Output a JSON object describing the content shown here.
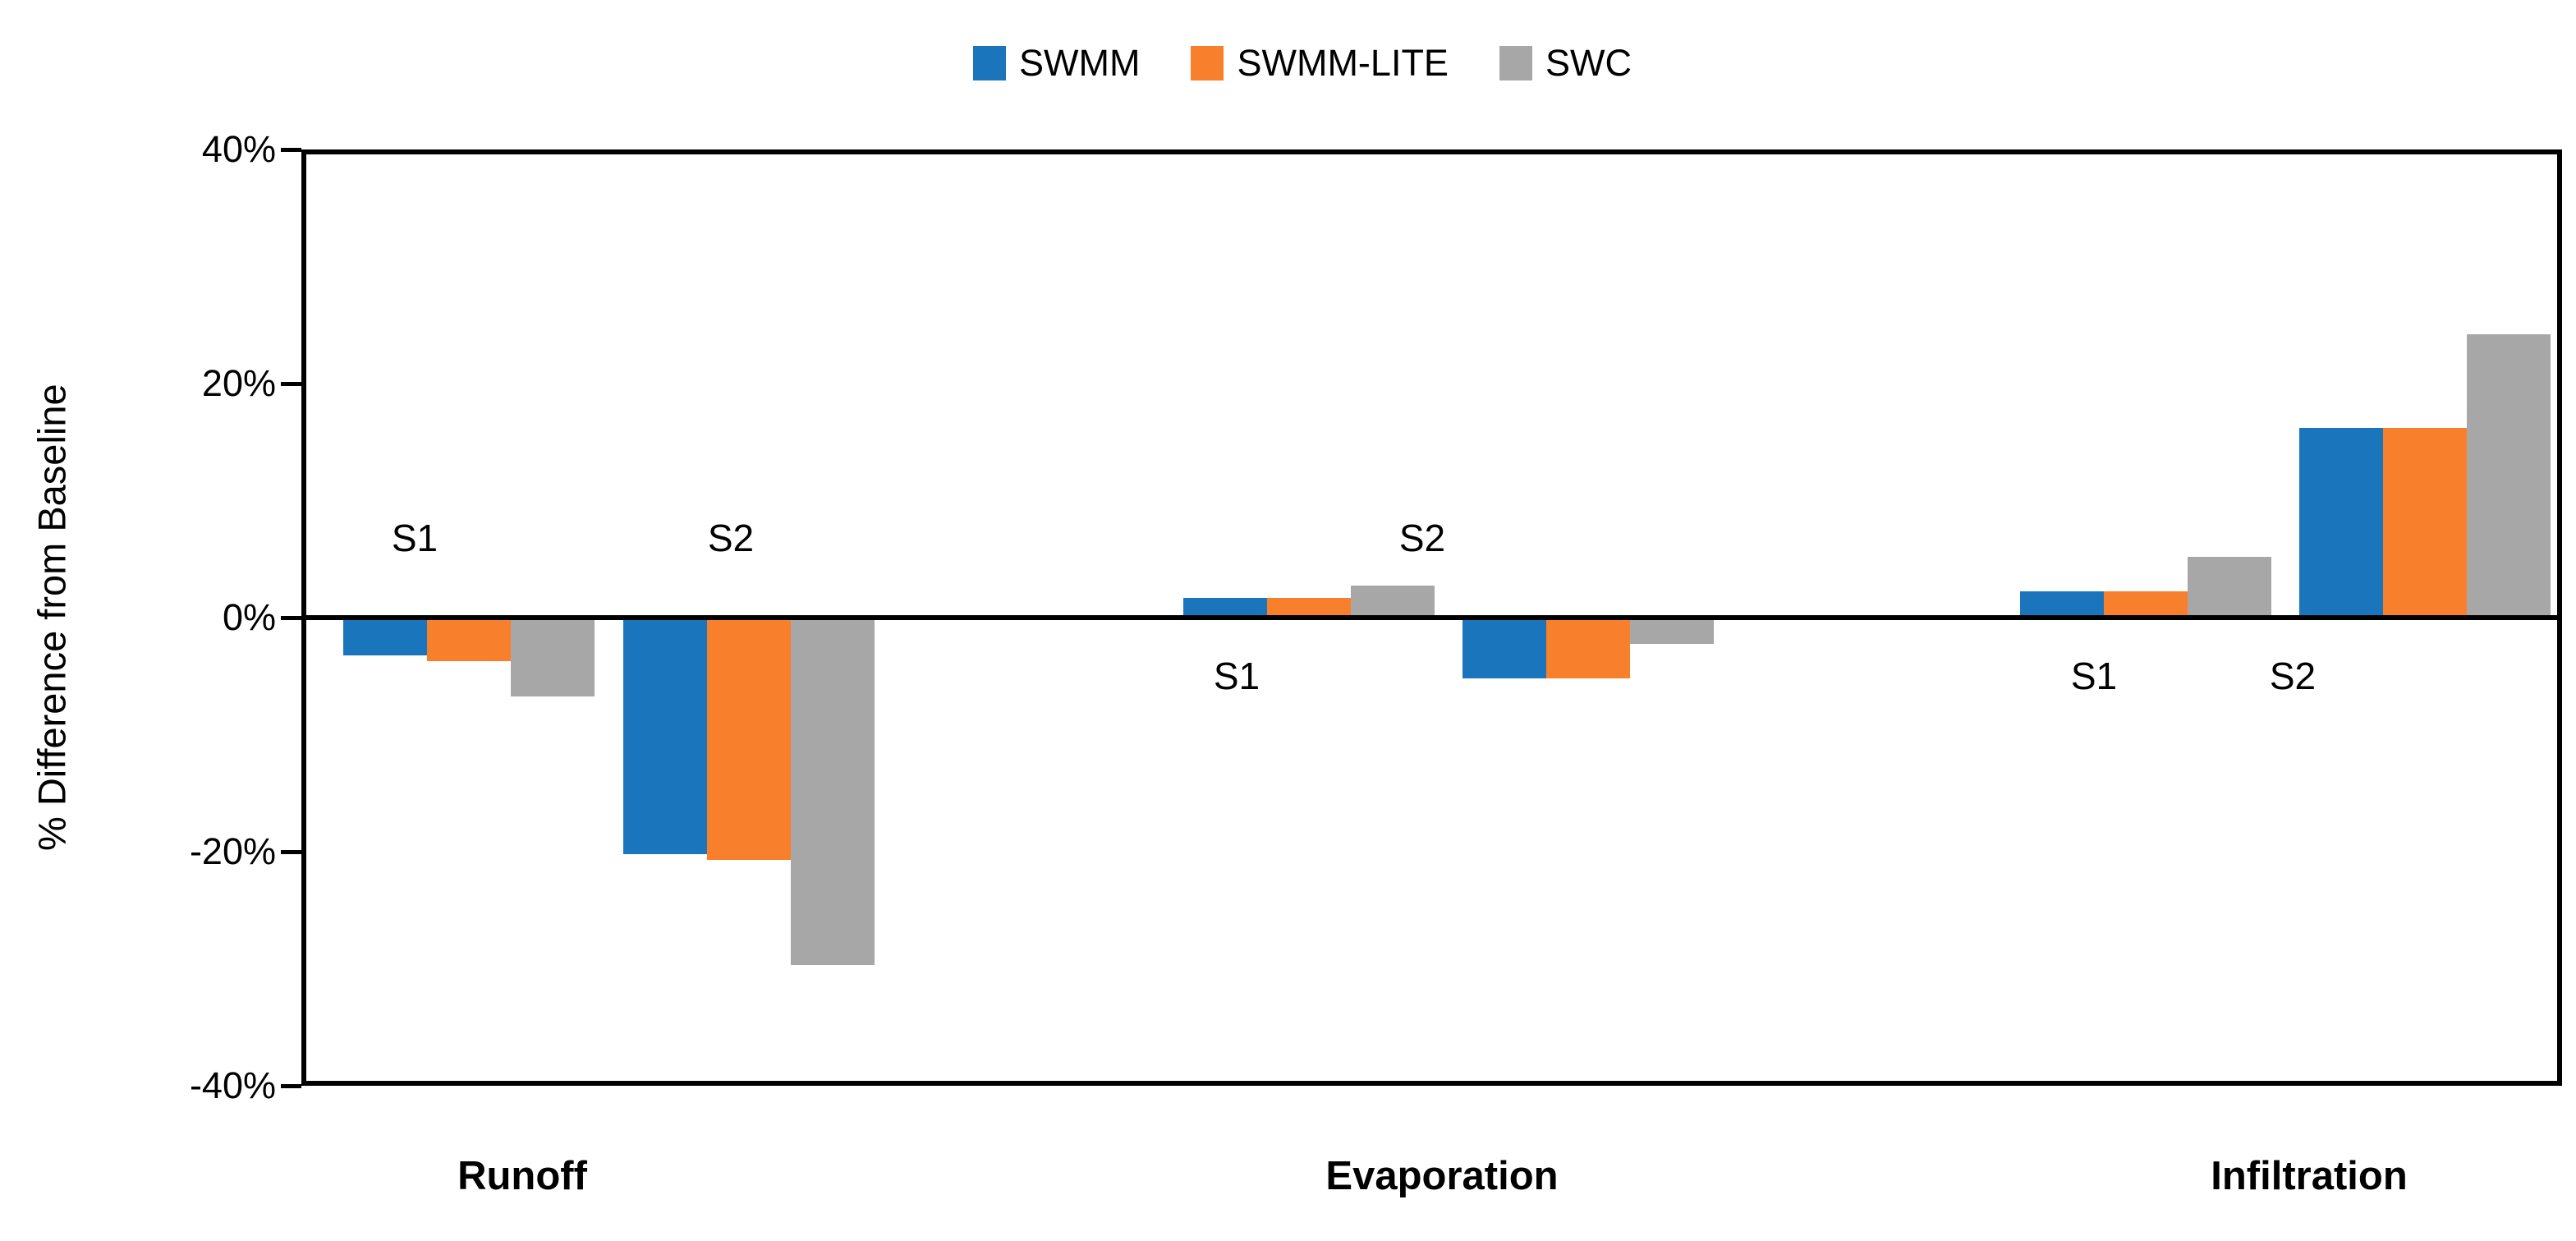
{
  "chart_data": {
    "type": "bar",
    "title": "",
    "xlabel": "",
    "ylabel": "% Difference from Baseline",
    "ylim": [
      -40,
      40
    ],
    "ytick_labels": [
      "40%",
      "20%",
      "0%",
      "-20%",
      "-40%"
    ],
    "ytick_values": [
      40,
      20,
      0,
      -20,
      -40
    ],
    "grid": false,
    "zero_baseline": true,
    "legend_position": "top-center",
    "series": [
      {
        "name": "SWMM",
        "color": "#1B75BC"
      },
      {
        "name": "SWMM-LITE",
        "color": "#F8802D"
      },
      {
        "name": "SWC",
        "color": "#A7A7A7"
      }
    ],
    "categories": [
      "Runoff",
      "Evaporation",
      "Infiltration"
    ],
    "scenarios": [
      "S1",
      "S2"
    ],
    "groups": [
      {
        "category": "Runoff",
        "scenario": "S1",
        "values": [
          -3,
          -3.5,
          -6.5
        ]
      },
      {
        "category": "Runoff",
        "scenario": "S2",
        "values": [
          -20,
          -20.5,
          -29.5
        ]
      },
      {
        "category": "Evaporation",
        "scenario": "S1",
        "values": [
          1.5,
          1.5,
          2.5
        ]
      },
      {
        "category": "Evaporation",
        "scenario": "S2",
        "values": [
          -5,
          -5,
          -2
        ]
      },
      {
        "category": "Infiltration",
        "scenario": "S1",
        "values": [
          2,
          2,
          5
        ]
      },
      {
        "category": "Infiltration",
        "scenario": "S2",
        "values": [
          16,
          16,
          24
        ]
      }
    ]
  }
}
